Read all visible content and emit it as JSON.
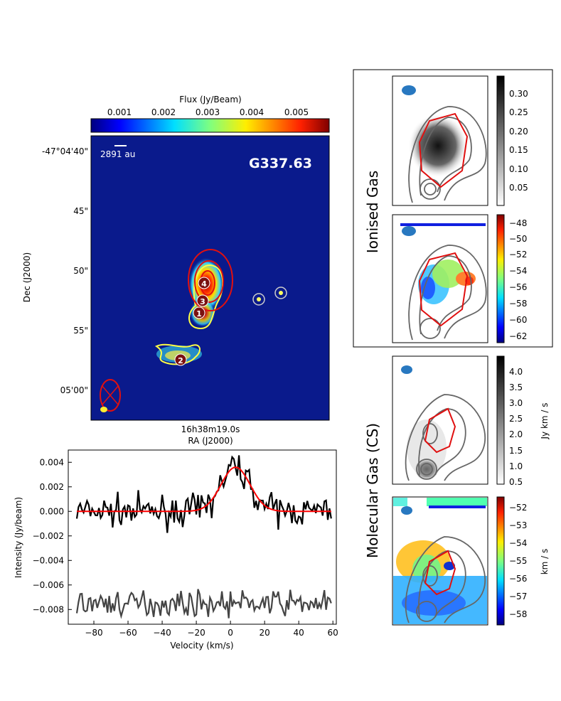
{
  "colors": {
    "map_background": "#0a1a8c",
    "contour_yellow": "#ffff44",
    "contour_red": "#e01010",
    "contour_gray": "#666666",
    "beam_blue": "#2878c0",
    "spectrum_line": "#000000",
    "spectrum_fit": "#ff0000",
    "spectrum_offset": "#444444"
  },
  "main_map": {
    "colorbar_title": "Flux (Jy/Beam)",
    "colorbar_ticks": [
      "0.001",
      "0.002",
      "0.003",
      "0.004",
      "0.005"
    ],
    "scale_label": "2891 au",
    "source_name": "G337.63",
    "dec_ticks": [
      "-47°04'40\"",
      "45\"",
      "50\"",
      "55\"",
      "05'00\""
    ],
    "ra_tick": "16h38m19.0s",
    "ra_label": "RA (J2000)",
    "dec_label": "Dec (J2000)",
    "source_labels": [
      "4",
      "3",
      "1",
      "2"
    ]
  },
  "right_panels": {
    "ionised_label": "Ionised Gas",
    "molecular_label": "Molecular Gas (CS)",
    "ionised_intensity_ticks": [
      "0.30",
      "0.25",
      "0.20",
      "0.15",
      "0.10",
      "0.05"
    ],
    "ionised_velocity_ticks": [
      "−48",
      "−50",
      "−52",
      "−54",
      "−56",
      "−58",
      "−60",
      "−62"
    ],
    "molecular_intensity_ticks": [
      "4.0",
      "3.5",
      "3.0",
      "2.5",
      "2.0",
      "1.5",
      "1.0",
      "0.5"
    ],
    "molecular_intensity_unit": "Jy km / s",
    "molecular_velocity_ticks": [
      "−52",
      "−53",
      "−54",
      "−55",
      "−56",
      "−57",
      "−58"
    ],
    "molecular_velocity_unit": "km / s"
  },
  "chart_data": {
    "type": "line",
    "xlabel": "Velocity (km/s)",
    "ylabel": "Intensity (Jy/beam)",
    "xlim": [
      -95,
      62
    ],
    "ylim": [
      -0.0092,
      0.005
    ],
    "x_ticks": [
      -80,
      -60,
      -40,
      -20,
      0,
      20,
      40,
      60
    ],
    "x_tick_labels": [
      "−80",
      "−60",
      "−40",
      "−20",
      "0",
      "20",
      "40",
      "60"
    ],
    "y_ticks": [
      0.004,
      0.002,
      0.0,
      -0.002,
      -0.004,
      -0.006,
      -0.008
    ],
    "y_tick_labels": [
      "0.004",
      "0.002",
      "0.000",
      "−0.002",
      "−0.004",
      "−0.006",
      "−0.008"
    ],
    "series": [
      {
        "name": "spectrum",
        "x_range": [
          -90,
          59
        ],
        "noise_rms": 0.0006,
        "baseline": 0.0
      },
      {
        "name": "gaussian_fit",
        "amplitude": 0.0036,
        "center": 3,
        "sigma": 8.5,
        "x_range": [
          -90,
          59
        ]
      },
      {
        "name": "offset_residual",
        "x_range": [
          -90,
          59
        ],
        "noise_rms": 0.0005,
        "baseline": -0.0075
      }
    ]
  }
}
